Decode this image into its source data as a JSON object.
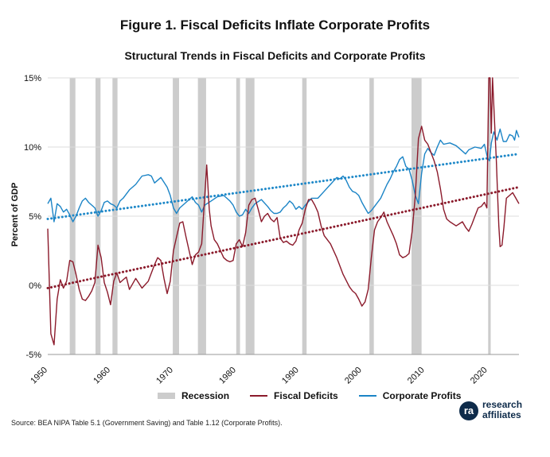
{
  "figure": {
    "title": "Figure 1. Fiscal Deficits Inflate Corporate Profits",
    "subtitle": "Structural Trends in Fiscal Deficits and Corporate Profits",
    "source": "Source: BEA NIPA Table 5.1 (Government Saving) and Table 1.12 (Corporate Profits).",
    "logo": {
      "line1": "research",
      "line2": "affiliates",
      "mark": "ra"
    }
  },
  "legend": {
    "recession": "Recession",
    "deficits": "Fiscal Deficits",
    "profits": "Corporate Profits"
  },
  "colors": {
    "deficits": "#8b1a2b",
    "profits": "#1b84c6",
    "deficits_trend": "#8b1a2b",
    "profits_trend": "#1e88c8",
    "recession": "#cccccc",
    "grid": "#dddddd"
  },
  "chart_data": {
    "type": "line",
    "title": "Structural Trends in Fiscal Deficits and Corporate Profits",
    "xlabel": "",
    "ylabel": "Percent of GDP",
    "xlim": [
      1950,
      2025
    ],
    "ylim": [
      -5,
      15
    ],
    "yticks": [
      -5,
      0,
      5,
      10,
      15
    ],
    "ytick_labels": [
      "-5%",
      "0%",
      "5%",
      "10%",
      "15%"
    ],
    "xticks": [
      1950,
      1960,
      1970,
      1980,
      1990,
      2000,
      2010,
      2020
    ],
    "xtick_labels": [
      "1950",
      "1960",
      "1970",
      "1980",
      "1990",
      "2000",
      "2010",
      "2020"
    ],
    "grid": true,
    "legend_position": "bottom",
    "recessions": [
      [
        1953.5,
        1954.4
      ],
      [
        1957.6,
        1958.4
      ],
      [
        1960.3,
        1961.1
      ],
      [
        1969.9,
        1970.9
      ],
      [
        1973.9,
        1975.2
      ],
      [
        1980.0,
        1980.6
      ],
      [
        1981.5,
        1982.9
      ],
      [
        1990.5,
        1991.2
      ],
      [
        2001.2,
        2001.9
      ],
      [
        2007.9,
        2009.5
      ],
      [
        2020.1,
        2020.5
      ]
    ],
    "series": [
      {
        "name": "Fiscal Deficits",
        "x": [
          1950.0,
          1950.5,
          1951.0,
          1951.5,
          1952.0,
          1952.5,
          1953.0,
          1953.5,
          1954.0,
          1954.5,
          1955.0,
          1955.5,
          1956.0,
          1956.5,
          1957.0,
          1957.5,
          1958.0,
          1958.5,
          1959.0,
          1959.5,
          1960.0,
          1960.5,
          1961.0,
          1961.5,
          1962.0,
          1962.5,
          1963.0,
          1964.0,
          1965.0,
          1966.0,
          1967.0,
          1967.5,
          1968.0,
          1968.5,
          1969.0,
          1969.5,
          1970.0,
          1970.5,
          1971.0,
          1971.5,
          1972.0,
          1972.5,
          1973.0,
          1973.5,
          1974.0,
          1974.5,
          1975.0,
          1975.3,
          1975.7,
          1976.0,
          1976.5,
          1977.0,
          1978.0,
          1978.5,
          1979.0,
          1979.5,
          1980.0,
          1980.5,
          1981.0,
          1981.5,
          1982.0,
          1982.5,
          1983.0,
          1983.5,
          1984.0,
          1984.5,
          1985.0,
          1985.5,
          1986.0,
          1986.5,
          1987.0,
          1987.5,
          1988.0,
          1988.5,
          1989.0,
          1989.5,
          1990.0,
          1990.5,
          1991.0,
          1991.5,
          1992.0,
          1992.5,
          1993.0,
          1993.5,
          1994.0,
          1995.0,
          1996.0,
          1997.0,
          1998.0,
          1998.5,
          1999.0,
          1999.5,
          2000.0,
          2000.5,
          2001.0,
          2001.5,
          2002.0,
          2002.5,
          2003.0,
          2003.5,
          2004.0,
          2005.0,
          2005.5,
          2006.0,
          2006.5,
          2007.0,
          2007.5,
          2008.0,
          2008.5,
          2009.0,
          2009.5,
          2010.0,
          2010.5,
          2011.0,
          2011.5,
          2012.0,
          2012.5,
          2013.0,
          2013.5,
          2014.0,
          2015.0,
          2016.0,
          2016.5,
          2017.0,
          2017.5,
          2018.0,
          2018.5,
          2019.0,
          2019.5,
          2019.9,
          2020.2,
          2020.4,
          2020.6,
          2020.8,
          2021.0,
          2021.2,
          2021.4,
          2021.6,
          2021.8,
          2022.0,
          2022.3,
          2022.6,
          2023.0,
          2023.5,
          2024.0,
          2024.5,
          2025.0
        ],
        "values": [
          4.1,
          -3.5,
          -4.3,
          -1.0,
          0.4,
          -0.2,
          0.3,
          1.8,
          1.7,
          0.8,
          -0.3,
          -1.0,
          -1.1,
          -0.8,
          -0.4,
          0.2,
          2.9,
          2.0,
          0.2,
          -0.5,
          -1.4,
          0.3,
          0.9,
          0.2,
          0.4,
          0.6,
          -0.3,
          0.5,
          -0.2,
          0.3,
          1.5,
          2.0,
          1.8,
          0.5,
          -0.6,
          0.3,
          2.5,
          3.5,
          4.5,
          4.6,
          3.5,
          2.5,
          1.5,
          2.2,
          2.4,
          3.0,
          6.5,
          8.7,
          5.5,
          4.3,
          3.3,
          3.0,
          2.0,
          1.8,
          1.7,
          1.8,
          3.0,
          3.3,
          2.8,
          3.8,
          5.8,
          6.2,
          6.3,
          5.5,
          4.6,
          5.0,
          5.2,
          4.8,
          4.6,
          4.9,
          3.4,
          3.1,
          3.2,
          3.0,
          2.9,
          3.2,
          4.0,
          4.5,
          5.5,
          6.2,
          6.2,
          5.8,
          5.3,
          4.3,
          3.6,
          3.0,
          2.0,
          0.8,
          -0.1,
          -0.4,
          -0.6,
          -1.0,
          -1.5,
          -1.2,
          -0.3,
          2.0,
          4.0,
          4.6,
          4.9,
          5.3,
          4.6,
          3.6,
          3.0,
          2.2,
          2.0,
          2.1,
          2.3,
          3.9,
          6.5,
          10.6,
          11.5,
          10.5,
          10.2,
          9.6,
          9.0,
          8.2,
          7.0,
          5.5,
          4.8,
          4.6,
          4.3,
          4.6,
          4.2,
          3.9,
          4.4,
          5.0,
          5.6,
          5.7,
          6.0,
          5.6,
          15.0,
          15.0,
          11.0,
          15.0,
          13.0,
          11.0,
          9.0,
          6.5,
          4.3,
          2.8,
          2.9,
          4.2,
          6.3,
          6.5,
          6.7,
          6.3,
          5.9
        ]
      },
      {
        "name": "Corporate Profits",
        "x": [
          1950.0,
          1950.5,
          1951.0,
          1951.5,
          1952.0,
          1952.5,
          1953.0,
          1953.5,
          1954.0,
          1954.5,
          1955.0,
          1955.5,
          1956.0,
          1956.5,
          1957.0,
          1957.5,
          1958.0,
          1958.5,
          1959.0,
          1959.5,
          1960.0,
          1960.5,
          1961.0,
          1961.5,
          1962.0,
          1963.0,
          1964.0,
          1965.0,
          1966.0,
          1966.5,
          1967.0,
          1968.0,
          1969.0,
          1969.5,
          1970.0,
          1970.5,
          1971.0,
          1972.0,
          1973.0,
          1973.5,
          1974.0,
          1974.5,
          1975.0,
          1976.0,
          1977.0,
          1978.0,
          1978.5,
          1979.0,
          1979.5,
          1980.0,
          1980.5,
          1981.0,
          1981.5,
          1982.0,
          1982.5,
          1983.0,
          1984.0,
          1985.0,
          1985.5,
          1986.0,
          1986.5,
          1987.0,
          1987.5,
          1988.0,
          1988.5,
          1989.0,
          1989.5,
          1990.0,
          1990.5,
          1991.0,
          1992.0,
          1993.0,
          1994.0,
          1995.0,
          1996.0,
          1996.5,
          1997.0,
          1997.5,
          1998.0,
          1998.5,
          1999.0,
          1999.5,
          2000.0,
          2000.5,
          2001.0,
          2001.5,
          2002.0,
          2003.0,
          2004.0,
          2004.5,
          2005.0,
          2005.5,
          2006.0,
          2006.5,
          2007.0,
          2007.5,
          2008.0,
          2008.5,
          2009.0,
          2009.5,
          2010.0,
          2010.5,
          2011.0,
          2011.5,
          2012.0,
          2012.5,
          2013.0,
          2014.0,
          2015.0,
          2016.0,
          2016.5,
          2017.0,
          2018.0,
          2019.0,
          2019.5,
          2020.0,
          2020.3,
          2020.6,
          2021.0,
          2021.5,
          2022.0,
          2022.5,
          2023.0,
          2023.5,
          2024.0,
          2024.3,
          2024.6,
          2025.0
        ],
        "values": [
          5.9,
          6.3,
          4.6,
          5.9,
          5.7,
          5.3,
          5.5,
          5.1,
          4.6,
          5.0,
          5.6,
          6.1,
          6.3,
          6.0,
          5.8,
          5.6,
          5.0,
          5.4,
          6.0,
          6.1,
          5.9,
          5.8,
          5.6,
          6.1,
          6.3,
          6.9,
          7.3,
          7.9,
          8.0,
          7.9,
          7.4,
          7.8,
          7.1,
          6.5,
          5.6,
          5.2,
          5.6,
          6.0,
          6.4,
          6.0,
          5.8,
          5.3,
          5.8,
          6.1,
          6.4,
          6.5,
          6.3,
          6.1,
          5.8,
          5.3,
          5.0,
          5.1,
          5.5,
          5.2,
          5.6,
          5.9,
          6.2,
          5.7,
          5.4,
          5.2,
          5.2,
          5.3,
          5.6,
          5.8,
          6.1,
          5.9,
          5.5,
          5.7,
          5.5,
          5.8,
          6.3,
          6.3,
          6.8,
          7.3,
          7.8,
          7.7,
          7.9,
          7.6,
          7.1,
          6.8,
          6.7,
          6.5,
          6.0,
          5.6,
          5.2,
          5.4,
          5.7,
          6.3,
          7.3,
          7.7,
          8.2,
          8.6,
          9.1,
          9.3,
          8.6,
          8.4,
          7.6,
          6.5,
          5.9,
          8.1,
          9.5,
          9.9,
          9.6,
          9.4,
          10.0,
          10.5,
          10.2,
          10.3,
          10.1,
          9.7,
          9.5,
          9.8,
          10.0,
          9.9,
          10.2,
          9.2,
          9.0,
          10.3,
          11.1,
          10.5,
          11.3,
          10.4,
          10.4,
          10.9,
          10.8,
          10.5,
          11.2,
          10.7
        ]
      }
    ],
    "trendlines": [
      {
        "name": "Fiscal Deficits trend",
        "x": [
          1950,
          2025
        ],
        "values": [
          -0.2,
          7.1
        ]
      },
      {
        "name": "Corporate Profits trend",
        "x": [
          1950,
          2025
        ],
        "values": [
          4.8,
          9.5
        ]
      }
    ]
  }
}
